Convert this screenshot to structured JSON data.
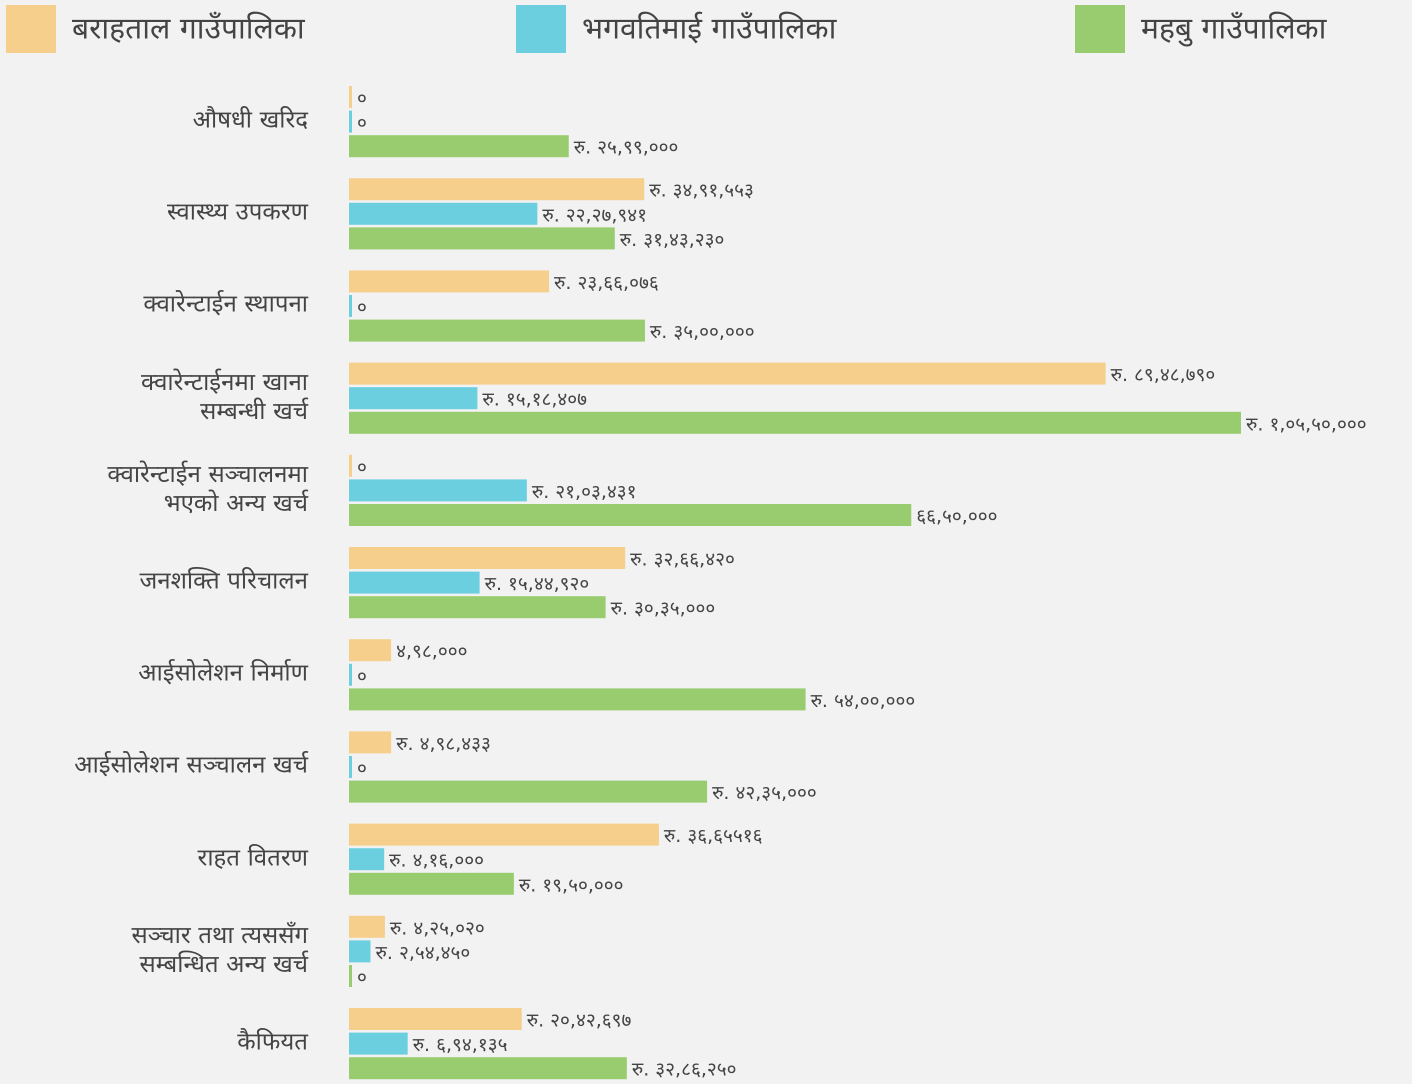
{
  "chart_data": {
    "type": "barh",
    "categories": [
      "औषधी खरिद",
      "स्वास्थ्य उपकरण",
      "क्वारेन्टाईन स्थापना",
      "क्वारेन्टाईनमा खाना\nसम्बन्धी खर्च",
      "क्वारेन्टाईन सञ्चालनमा\nभएको अन्य खर्च",
      "जनशक्ति परिचालन",
      "आईसोलेशन निर्माण",
      "आईसोलेशन सञ्चालन खर्च",
      "राहत वितरण",
      "सञ्चार तथा त्यससँग\nसम्बन्धित अन्य खर्च",
      "कैफियत"
    ],
    "xlim": [
      0,
      10550000
    ],
    "legend": "top",
    "series": [
      {
        "name": "बराहताल गाउँपालिका",
        "color": "#f5cf8b",
        "values": [
          0,
          3491553,
          2366076,
          8948790,
          0,
          3266420,
          498000,
          498433,
          3665516,
          425020,
          2042697
        ],
        "value_labels": [
          "०",
          "रु. ३४,९१,५५३",
          "रु. २३,६६,०७६",
          "रु. ८९,४८,७९०",
          "०",
          "रु. ३२,६६,४२०",
          "४,९८,०००",
          "रु. ४,९८,४३३",
          "रु. ३६,६५५१६",
          "रु. ४,२५,०२०",
          "रु. २०,४२,६९७"
        ]
      },
      {
        "name": "भगवतिमाई गाउँपालिका",
        "color": "#6ccfe0",
        "values": [
          0,
          2227941,
          0,
          1518407,
          2103431,
          1544920,
          0,
          0,
          416000,
          254450,
          694135
        ],
        "value_labels": [
          "०",
          "रु. २२,२७,९४१",
          "०",
          "रु. १५,१८,४०७",
          "रु. २१,०३,४३१",
          "रु. १५,४४,९२०",
          "०",
          "०",
          "रु. ४,१६,०००",
          "रु. २,५४,४५०",
          "रु. ६,९४,१३५"
        ]
      },
      {
        "name": "महबु गाउँपालिका",
        "color": "#99cc6e",
        "values": [
          2599000,
          3143230,
          3500000,
          10550000,
          6650000,
          3035000,
          5400000,
          4235000,
          1950000,
          0,
          3286250
        ],
        "value_labels": [
          "रु. २५,९९,०००",
          "रु. ३१,४३,२३०",
          "रु. ३५,००,०००",
          "रु. १,०५,५०,०००",
          "६६,५०,०००",
          "रु. ३०,३५,०००",
          "रु. ५४,००,०००",
          "रु. ४२,३५,०००",
          "रु. १९,५०,०००",
          "०",
          "रु. ३२,८६,२५०"
        ]
      }
    ]
  }
}
